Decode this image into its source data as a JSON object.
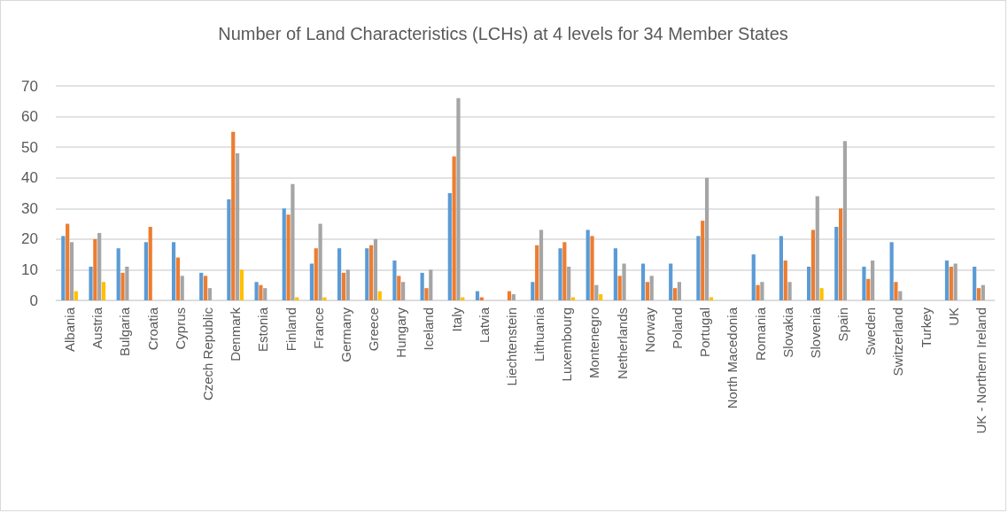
{
  "chart_data": {
    "type": "bar",
    "title": "Number of Land Characteristics (LCHs) at 4 levels for 34 Member States",
    "categories": [
      "Albania",
      "Austria",
      "Bulgaria",
      "Croatia",
      "Cyprus",
      "Czech Republic",
      "Denmark",
      "Estonia",
      "Finland",
      "France",
      "Germany",
      "Greece",
      "Hungary",
      "Iceland",
      "Italy",
      "Latvia",
      "Liechtenstein",
      "Lithuania",
      "Luxembourg",
      "Montenegro",
      "Netherlands",
      "Norway",
      "Poland",
      "Portugal",
      "North Macedonia",
      "Romania",
      "Slovakia",
      "Slovenia",
      "Spain",
      "Sweden",
      "Switzerland",
      "Turkey",
      "UK",
      "UK - Northern Ireland"
    ],
    "series": [
      {
        "color": "#5b9bd5",
        "values": [
          21,
          11,
          17,
          19,
          19,
          9,
          33,
          6,
          30,
          12,
          17,
          17,
          13,
          9,
          35,
          3,
          0,
          6,
          17,
          23,
          17,
          12,
          12,
          21,
          0,
          15,
          21,
          11,
          24,
          11,
          19,
          0,
          13,
          11
        ]
      },
      {
        "color": "#ed7d31",
        "values": [
          25,
          20,
          9,
          24,
          14,
          8,
          55,
          5,
          28,
          17,
          9,
          18,
          8,
          4,
          47,
          1,
          3,
          18,
          19,
          21,
          8,
          6,
          4,
          26,
          0,
          5,
          13,
          23,
          30,
          7,
          6,
          0,
          11,
          4
        ]
      },
      {
        "color": "#a5a5a5",
        "values": [
          19,
          22,
          11,
          0,
          8,
          4,
          48,
          4,
          38,
          25,
          10,
          20,
          6,
          10,
          66,
          0,
          2,
          23,
          11,
          5,
          12,
          8,
          6,
          40,
          0,
          6,
          6,
          34,
          52,
          13,
          3,
          0,
          12,
          5
        ]
      },
      {
        "color": "#ffc000",
        "values": [
          3,
          6,
          0,
          0,
          0,
          0,
          10,
          0,
          1,
          1,
          0,
          3,
          0,
          0,
          1,
          0,
          0,
          0,
          1,
          2,
          0,
          0,
          0,
          1,
          0,
          0,
          0,
          4,
          0,
          0,
          0,
          0,
          0,
          0
        ]
      }
    ],
    "ylim": [
      0,
      70
    ],
    "yticks": [
      0,
      10,
      20,
      30,
      40,
      50,
      60,
      70
    ],
    "grid": "y"
  }
}
